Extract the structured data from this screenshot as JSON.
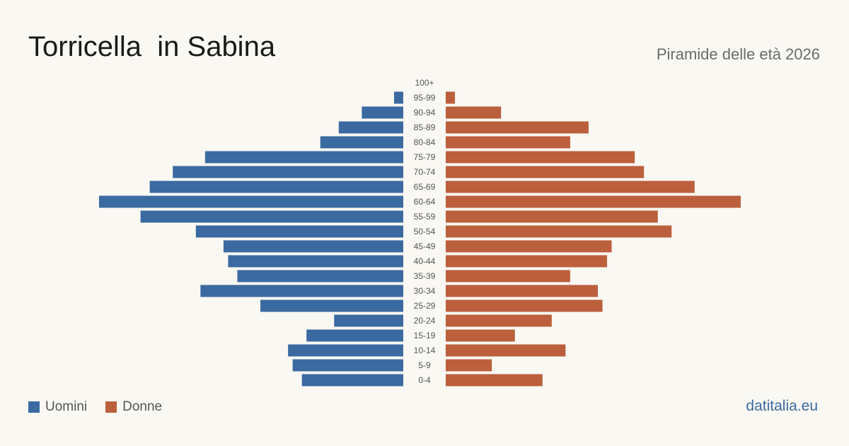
{
  "title": "Torricella  in Sabina",
  "subtitle": "Piramide delle età 2026",
  "brand": "datitalia.eu",
  "colors": {
    "men": "#3b6aa0",
    "women": "#bc5f3c",
    "tick": "#555555"
  },
  "chart_data": {
    "type": "bar",
    "orientation": "horizontal-pyramid",
    "categories": [
      "100+",
      "95-99",
      "90-94",
      "85-89",
      "80-84",
      "75-79",
      "70-74",
      "65-69",
      "60-64",
      "55-59",
      "50-54",
      "45-49",
      "40-44",
      "35-39",
      "30-34",
      "25-29",
      "20-24",
      "15-19",
      "10-14",
      "5-9",
      "0-4"
    ],
    "series": [
      {
        "name": "Uomini",
        "values": [
          0,
          2,
          9,
          14,
          18,
          43,
          50,
          55,
          66,
          57,
          45,
          39,
          38,
          36,
          44,
          31,
          15,
          21,
          25,
          24,
          22
        ]
      },
      {
        "name": "Donne",
        "values": [
          0,
          2,
          12,
          31,
          27,
          41,
          43,
          54,
          64,
          46,
          49,
          36,
          35,
          27,
          33,
          34,
          23,
          15,
          26,
          10,
          21
        ]
      }
    ],
    "legend": "bottom-left"
  }
}
